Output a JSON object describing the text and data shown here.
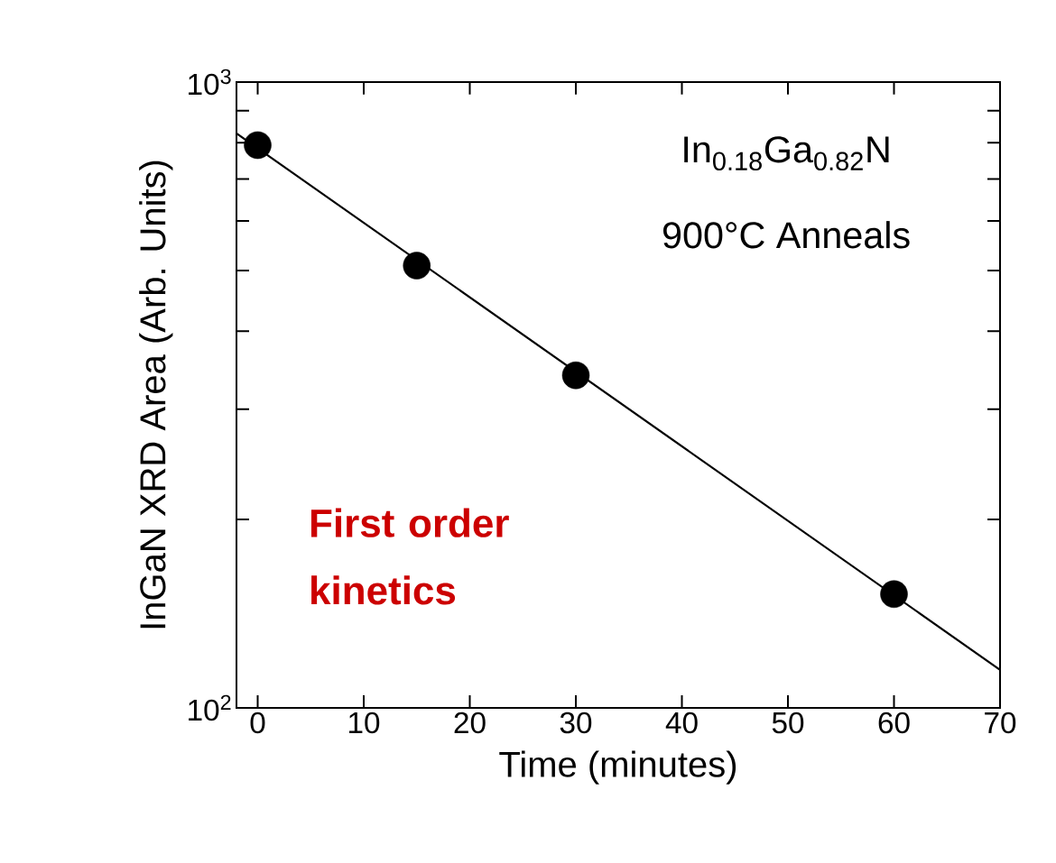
{
  "chart_data": {
    "type": "scatter",
    "xlabel": "Time (minutes)",
    "ylabel": "InGaN XRD Area (Arb. Units)",
    "annotations": [
      "In$_{0.18}$Ga$_{0.82}$N",
      "900°C Anneals",
      "First order kinetics"
    ],
    "log": "y",
    "xlim": [
      -2,
      70
    ],
    "ylim": [
      100,
      1000
    ],
    "xticks": [
      0,
      10,
      20,
      30,
      40,
      50,
      60,
      70
    ],
    "yticks": [
      {
        "value": 100,
        "label": "10$^{2}$"
      },
      {
        "value": 200,
        "label": null
      },
      {
        "value": 300,
        "label": null
      },
      {
        "value": 400,
        "label": null
      },
      {
        "value": 500,
        "label": null
      },
      {
        "value": 600,
        "label": null
      },
      {
        "value": 700,
        "label": null
      },
      {
        "value": 800,
        "label": null
      },
      {
        "value": 900,
        "label": null
      },
      {
        "value": 1000,
        "label": "10$^{3}$"
      }
    ],
    "series": [
      {
        "type": "scatter",
        "x": [
          0,
          15,
          30,
          60
        ],
        "values": [
          793,
          509,
          340,
          152
        ],
        "color": "#000000",
        "marker": "circle"
      },
      {
        "type": "line",
        "x": [
          -2,
          70
        ],
        "values": [
          828,
          115
        ],
        "color": "#000000",
        "line_style": "solid"
      }
    ]
  }
}
